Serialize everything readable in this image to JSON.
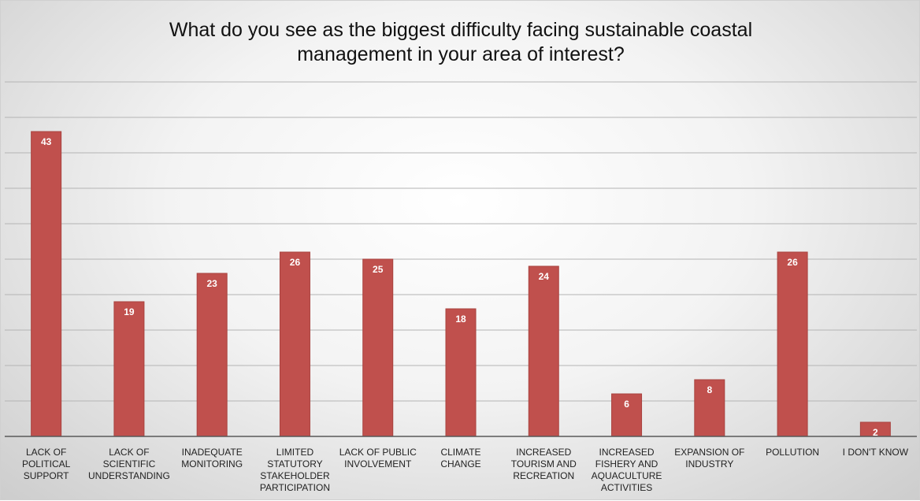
{
  "chart_data": {
    "type": "bar",
    "title_lines": [
      "What do you see as the biggest difficulty facing  sustainable coastal",
      "management in your area of interest?"
    ],
    "categories": [
      "LACK OF POLITICAL SUPPORT",
      "LACK OF SCIENTIFIC UNDERSTANDING",
      "INADEQUATE MONITORING",
      "LIMITED STATUTORY STAKEHOLDER PARTICIPATION",
      "LACK OF PUBLIC INVOLVEMENT",
      "CLIMATE CHANGE",
      "INCREASED TOURISM AND RECREATION",
      "INCREASED FISHERY AND AQUACULTURE ACTIVITIES",
      "EXPANSION OF INDUSTRY",
      "POLLUTION",
      "I DON'T KNOW"
    ],
    "category_lines": [
      [
        "LACK OF",
        "POLITICAL",
        "SUPPORT"
      ],
      [
        "LACK OF",
        "SCIENTIFIC",
        "UNDERSTANDING"
      ],
      [
        "INADEQUATE",
        "MONITORING"
      ],
      [
        "LIMITED",
        "STATUTORY",
        "STAKEHOLDER",
        "PARTICIPATION"
      ],
      [
        "LACK OF PUBLIC",
        "INVOLVEMENT"
      ],
      [
        "CLIMATE CHANGE"
      ],
      [
        "INCREASED",
        "TOURISM AND",
        "RECREATION"
      ],
      [
        "INCREASED",
        "FISHERY AND",
        "AQUACULTURE",
        "ACTIVITIES"
      ],
      [
        "EXPANSION OF",
        "INDUSTRY"
      ],
      [
        "POLLUTION"
      ],
      [
        "I DON'T KNOW"
      ]
    ],
    "values": [
      43,
      19,
      23,
      26,
      25,
      18,
      24,
      6,
      8,
      26,
      2
    ],
    "data_labels": [
      "43",
      "19",
      "23",
      "26",
      "25",
      "18",
      "24",
      "6",
      "8",
      "26",
      "2"
    ],
    "ylim": [
      0,
      50
    ],
    "gridline_step": 5,
    "grid": true,
    "axis_tick_labels_shown": false,
    "legend": "none",
    "xlabel": "",
    "ylabel": "",
    "colors": {
      "bar_fill": "#c0504d",
      "bar_edge": "#a9433f",
      "gridline": "#b4b4b4",
      "axis_line": "#595959",
      "data_label_text": "#ffffff"
    }
  }
}
